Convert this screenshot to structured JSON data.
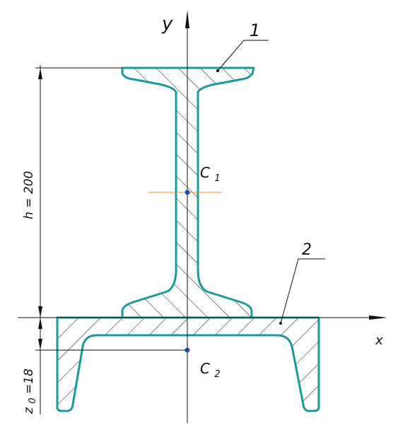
{
  "labels": {
    "axis_y": "y",
    "axis_x": "x",
    "part_1": "1",
    "part_2": "2",
    "centroid_1": "C",
    "centroid_1_sub": "1",
    "centroid_2": "C",
    "centroid_2_sub": "2",
    "height_dim": "h = 200",
    "offset_dim_z": "z",
    "offset_dim_sub": "0",
    "offset_dim_value": "=18"
  },
  "colors": {
    "outline": "#1a9a9a",
    "centroid_point": "#1f4fbf",
    "centroid_axis": "#e08a2e",
    "line": "#111111"
  }
}
